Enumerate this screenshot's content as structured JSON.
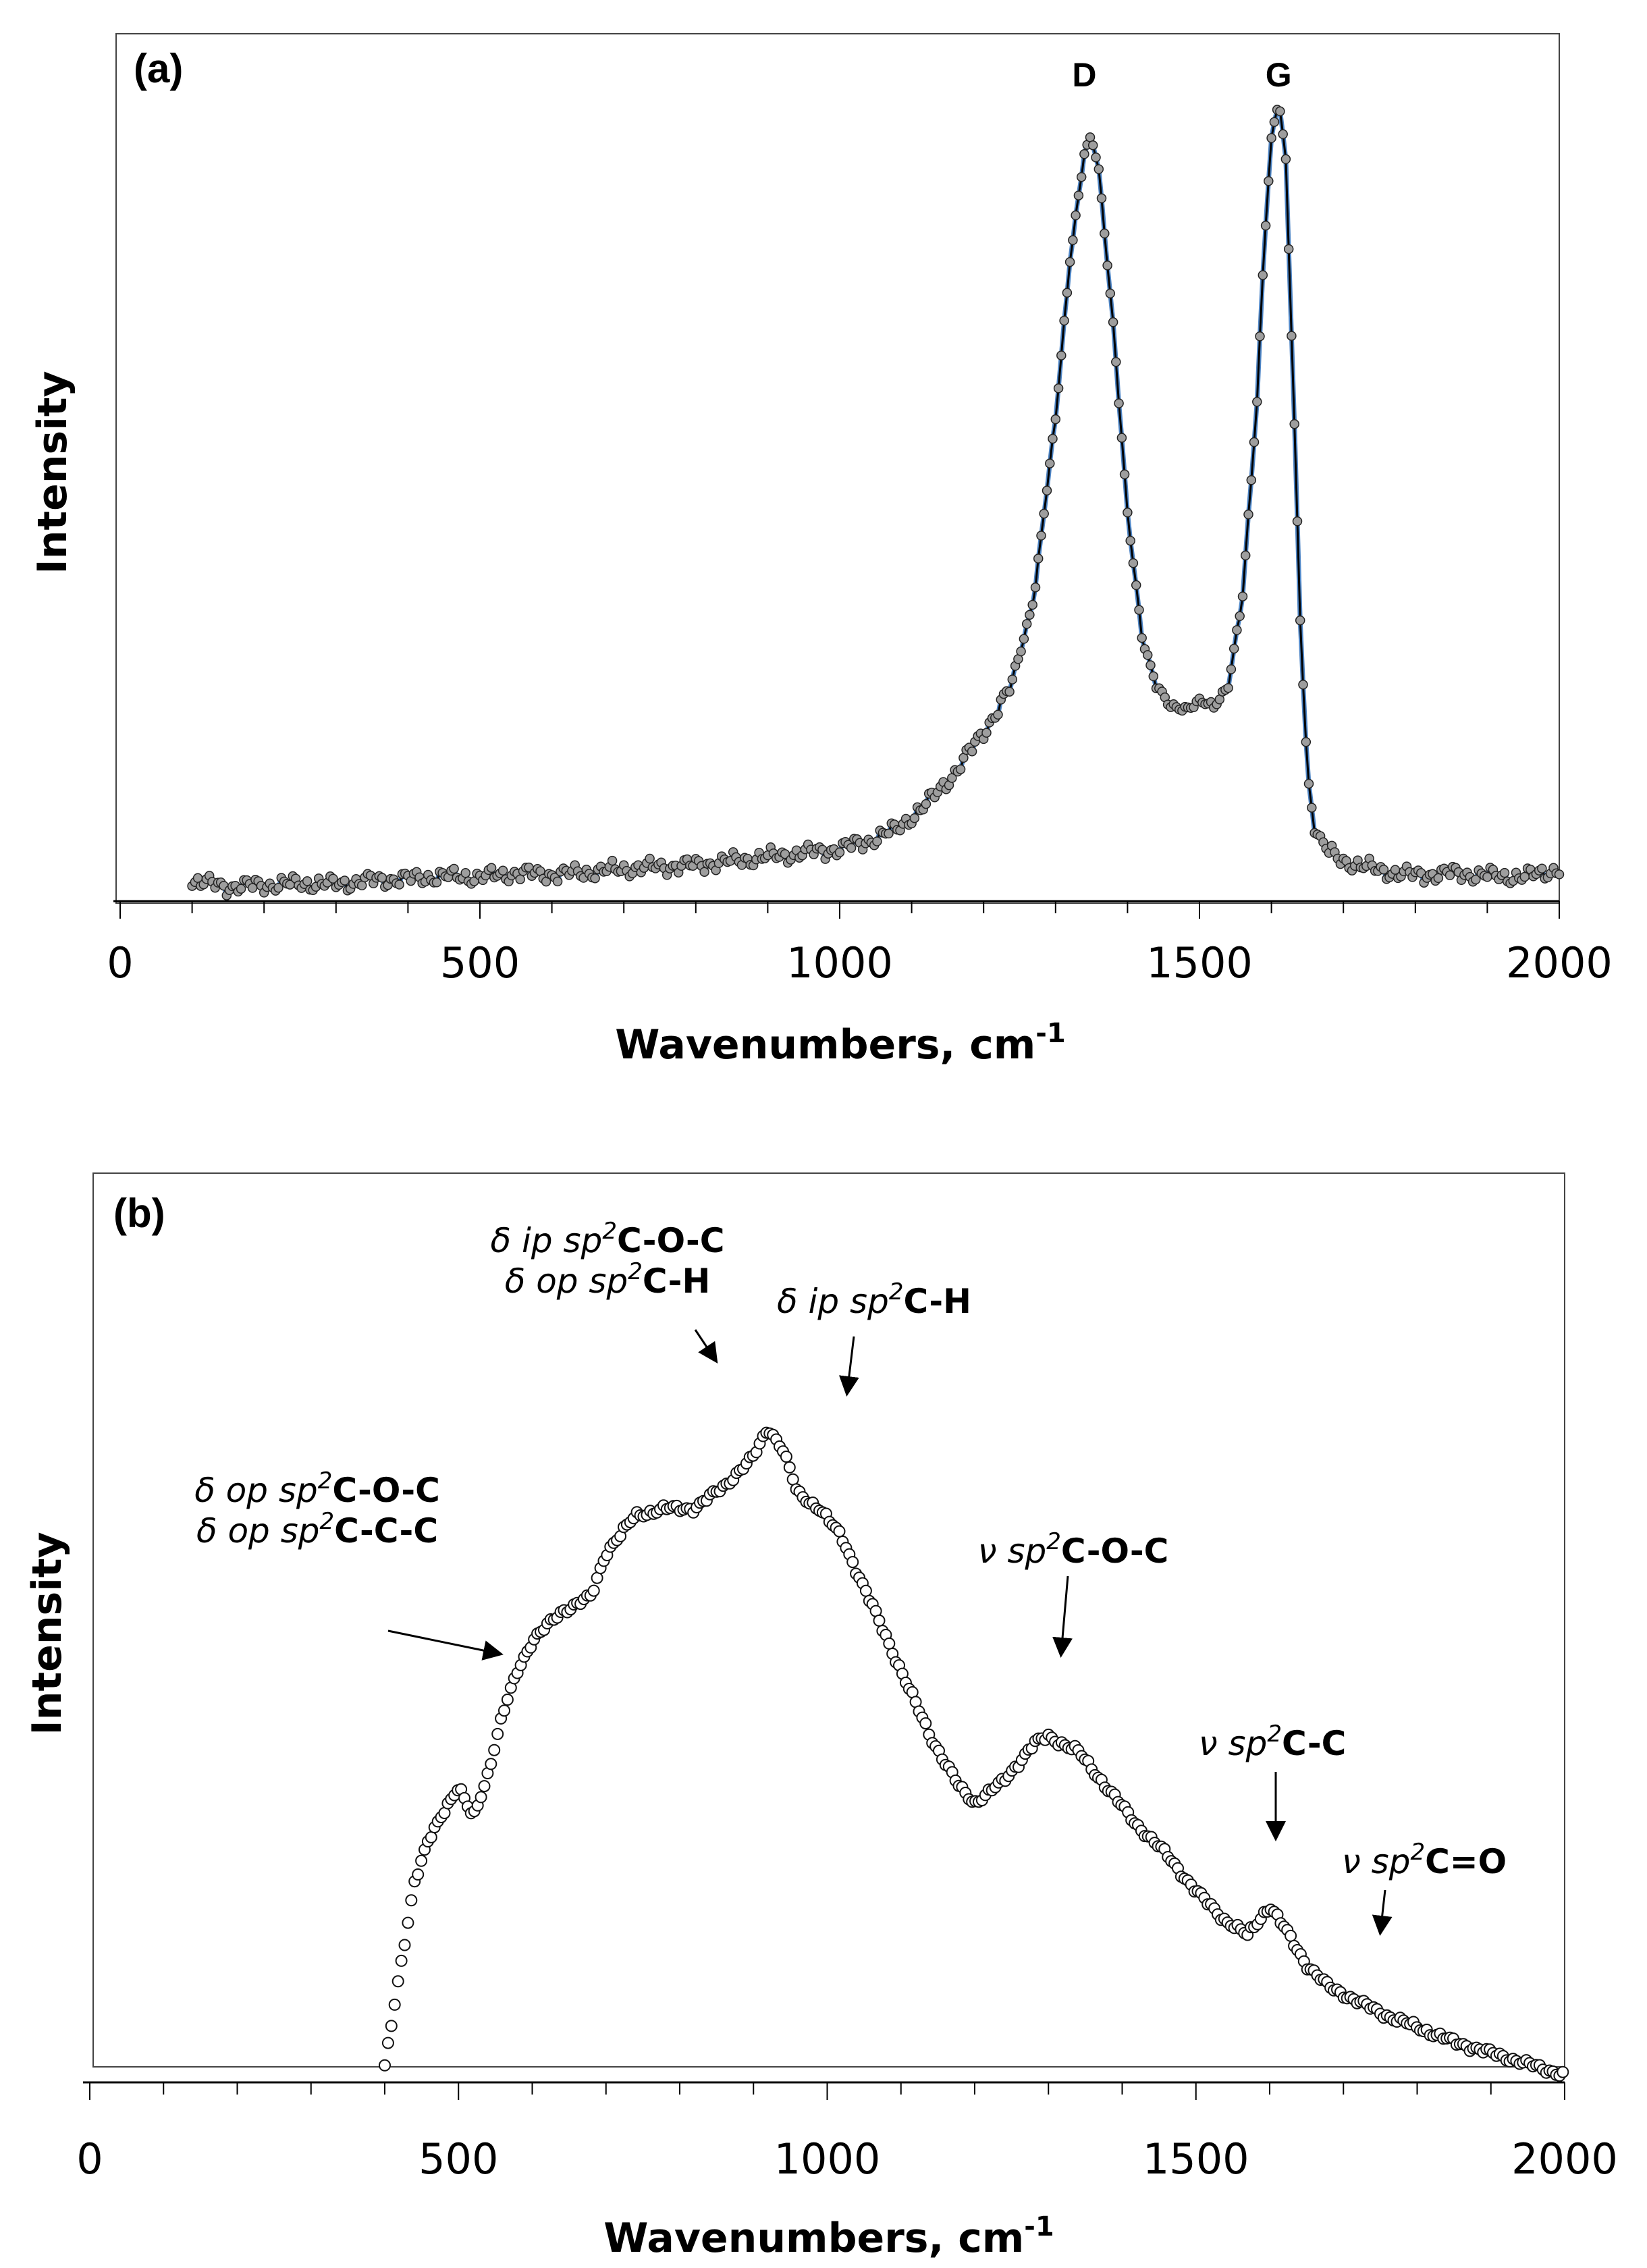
{
  "chart_data": [
    {
      "type": "scatter",
      "panel_label": "(a)",
      "title": "",
      "xlabel": "Wavenumbers, cm",
      "xlabel_sup": "-1",
      "ylabel": "Intensity",
      "xlim": [
        0,
        2000
      ],
      "ylim": [
        0,
        1
      ],
      "x_ticks": [
        "0",
        "500",
        "1000",
        "1500",
        "2000"
      ],
      "y_ticks": [],
      "grid": false,
      "legend": "none",
      "marker_style": "filled-gray-circle",
      "line": "black",
      "series": [
        {
          "name": "spectrum-a",
          "x": [
            100,
            150,
            200,
            250,
            300,
            350,
            400,
            450,
            500,
            550,
            600,
            650,
            700,
            750,
            800,
            850,
            900,
            950,
            1000,
            1040,
            1080,
            1120,
            1160,
            1200,
            1240,
            1270,
            1300,
            1320,
            1340,
            1350,
            1360,
            1380,
            1400,
            1420,
            1440,
            1460,
            1480,
            1500,
            1520,
            1540,
            1560,
            1580,
            1590,
            1600,
            1610,
            1620,
            1630,
            1640,
            1650,
            1660,
            1680,
            1700,
            1750,
            1800,
            1850,
            1900,
            1950,
            2000
          ],
          "y": [
            0.025,
            0.018,
            0.02,
            0.022,
            0.021,
            0.026,
            0.028,
            0.031,
            0.03,
            0.035,
            0.033,
            0.036,
            0.04,
            0.043,
            0.045,
            0.05,
            0.055,
            0.06,
            0.065,
            0.075,
            0.09,
            0.12,
            0.16,
            0.21,
            0.27,
            0.38,
            0.6,
            0.8,
            0.93,
            0.95,
            0.91,
            0.72,
            0.48,
            0.33,
            0.27,
            0.24,
            0.24,
            0.25,
            0.24,
            0.27,
            0.38,
            0.62,
            0.82,
            0.95,
            1.0,
            0.92,
            0.65,
            0.35,
            0.16,
            0.09,
            0.06,
            0.05,
            0.038,
            0.032,
            0.035,
            0.032,
            0.03,
            0.04
          ]
        }
      ],
      "annotations": [
        {
          "text": "D",
          "x": 1340
        },
        {
          "text": "G",
          "x": 1610
        }
      ]
    },
    {
      "type": "scatter",
      "panel_label": "(b)",
      "title": "",
      "xlabel": "Wavenumbers, cm",
      "xlabel_sup": "-1",
      "ylabel": "Intensity",
      "xlim": [
        0,
        2000
      ],
      "ylim": [
        0,
        1
      ],
      "x_ticks": [
        "0",
        "500",
        "1000",
        "1500",
        "2000"
      ],
      "y_ticks": [],
      "grid": false,
      "legend": "none",
      "marker_style": "open-circle",
      "series": [
        {
          "name": "spectrum-b",
          "x": [
            400,
            420,
            440,
            460,
            480,
            500,
            520,
            540,
            560,
            580,
            600,
            640,
            680,
            700,
            740,
            780,
            820,
            860,
            900,
            920,
            940,
            960,
            990,
            1020,
            1060,
            1100,
            1140,
            1180,
            1200,
            1240,
            1280,
            1300,
            1340,
            1380,
            1420,
            1460,
            1500,
            1540,
            1570,
            1600,
            1620,
            1650,
            1680,
            1720,
            1760,
            1800,
            1850,
            1900,
            1950,
            2000
          ],
          "y": [
            0.02,
            0.15,
            0.27,
            0.33,
            0.37,
            0.4,
            0.36,
            0.42,
            0.5,
            0.56,
            0.6,
            0.64,
            0.66,
            0.72,
            0.77,
            0.78,
            0.78,
            0.81,
            0.85,
            0.89,
            0.86,
            0.8,
            0.78,
            0.74,
            0.65,
            0.56,
            0.47,
            0.4,
            0.38,
            0.41,
            0.46,
            0.47,
            0.45,
            0.4,
            0.35,
            0.31,
            0.26,
            0.22,
            0.2,
            0.24,
            0.21,
            0.16,
            0.13,
            0.11,
            0.09,
            0.075,
            0.055,
            0.04,
            0.025,
            0.01
          ]
        }
      ],
      "annotations": [
        {
          "lines": [
            [
              "δ ",
              "op sp",
              "2",
              "C-O-C"
            ],
            [
              "δ ",
              "op sp",
              "2",
              "C-C-C"
            ]
          ],
          "x": 560
        },
        {
          "lines": [
            [
              "δ ",
              "ip sp",
              "2",
              "C-O-C"
            ],
            [
              "δ ",
              "op sp",
              "2",
              "C-H"
            ]
          ],
          "x": 855
        },
        {
          "lines": [
            [
              "δ ",
              "ip sp",
              "2",
              "C-H"
            ]
          ],
          "x": 1030
        },
        {
          "lines": [
            [
              "ν ",
              "sp",
              "2",
              "C-O-C"
            ]
          ],
          "x": 1325
        },
        {
          "lines": [
            [
              "ν ",
              "sp",
              "2",
              "C-C"
            ]
          ],
          "x": 1620
        },
        {
          "lines": [
            [
              "ν ",
              "sp",
              "2",
              "C=O"
            ]
          ],
          "x": 1750
        }
      ]
    }
  ]
}
